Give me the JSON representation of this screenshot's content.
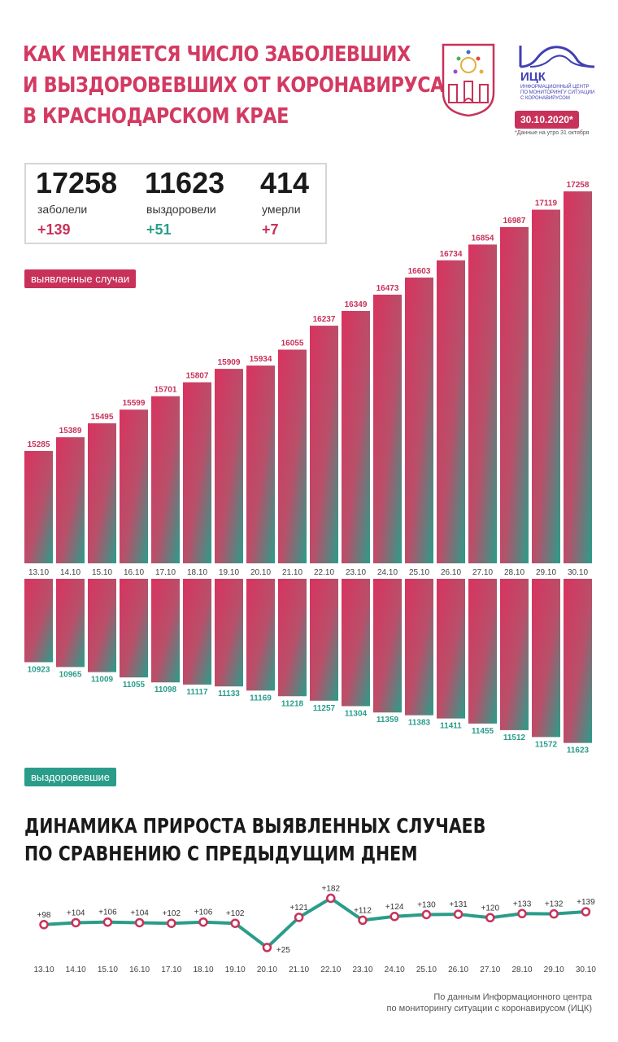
{
  "header": {
    "title_lines": [
      "КАК МЕНЯЕТСЯ ЧИСЛО ЗАБОЛЕВШИХ",
      "И ВЫЗДОРОВЕВШИХ ОТ КОРОНАВИРУСА",
      "В КРАСНОДАРСКОМ КРАЕ"
    ],
    "date": "30.10.2020*",
    "date_note": "*Данные на утро 31 октября"
  },
  "logo": {
    "name": "ИЦК",
    "subtitle": [
      "ИНФОРМАЦИОННЫЙ ЦЕНТР",
      "ПО МОНИТОРИНГУ СИТУАЦИИ",
      "С КОРОНАВИРУСОМ"
    ],
    "icon": "ick-wave-logo",
    "crest_icon": "krasnodar-crest-icon"
  },
  "stats": {
    "cases": {
      "value": "17258",
      "label": "заболели",
      "delta": "+139"
    },
    "recovered": {
      "value": "11623",
      "label": "выздоровели",
      "delta": "+51"
    },
    "deaths": {
      "value": "414",
      "label": "умерли",
      "delta": "+7"
    }
  },
  "legend": {
    "cases": "выявленные случаи",
    "recovered": "выздоровевшие"
  },
  "colors": {
    "accent": "#c8325a",
    "teal": "#2a9d8a",
    "gradient_top": "#d8335f",
    "gradient_bottom": "#2a9d8a"
  },
  "chart_data": [
    {
      "type": "bar",
      "categories": [
        "13.10",
        "14.10",
        "15.10",
        "16.10",
        "17.10",
        "18.10",
        "19.10",
        "20.10",
        "21.10",
        "22.10",
        "23.10",
        "24.10",
        "25.10",
        "26.10",
        "27.10",
        "28.10",
        "29.10",
        "30.10"
      ],
      "series": [
        {
          "name": "выявленные случаи",
          "values": [
            15285,
            15389,
            15495,
            15599,
            15701,
            15807,
            15909,
            15934,
            16055,
            16237,
            16349,
            16473,
            16603,
            16734,
            16854,
            16987,
            17119,
            17258
          ]
        },
        {
          "name": "выздоровевшие",
          "values": [
            10923,
            10965,
            11009,
            11055,
            11098,
            11117,
            11133,
            11169,
            11218,
            11257,
            11304,
            11359,
            11383,
            11411,
            11455,
            11512,
            11572,
            11623
          ]
        }
      ]
    },
    {
      "type": "line",
      "title": "ДИНАМИКА ПРИРОСТА ВЫЯВЛЕННЫХ СЛУЧАЕВ ПО СРАВНЕНИЮ С ПРЕДЫДУЩИМ ДНЕМ",
      "title_lines": [
        "ДИНАМИКА ПРИРОСТА ВЫЯВЛЕННЫХ СЛУЧАЕВ",
        "ПО СРАВНЕНИЮ С ПРЕДЫДУЩИМ ДНЕМ"
      ],
      "x": [
        "13.10",
        "14.10",
        "15.10",
        "16.10",
        "17.10",
        "18.10",
        "19.10",
        "20.10",
        "21.10",
        "22.10",
        "23.10",
        "24.10",
        "25.10",
        "26.10",
        "27.10",
        "28.10",
        "29.10",
        "30.10"
      ],
      "y": [
        98,
        104,
        106,
        104,
        102,
        106,
        102,
        25,
        121,
        182,
        112,
        124,
        130,
        131,
        120,
        133,
        132,
        139
      ],
      "labels": [
        "+98",
        "+104",
        "+106",
        "+104",
        "+102",
        "+106",
        "+102",
        "+25",
        "+121",
        "+182",
        "+112",
        "+124",
        "+130",
        "+131",
        "+120",
        "+133",
        "+132",
        "+139"
      ]
    }
  ],
  "source": [
    "По данным Информационного центра",
    "по мониторингу ситуации с коронавирусом (ИЦК)"
  ]
}
